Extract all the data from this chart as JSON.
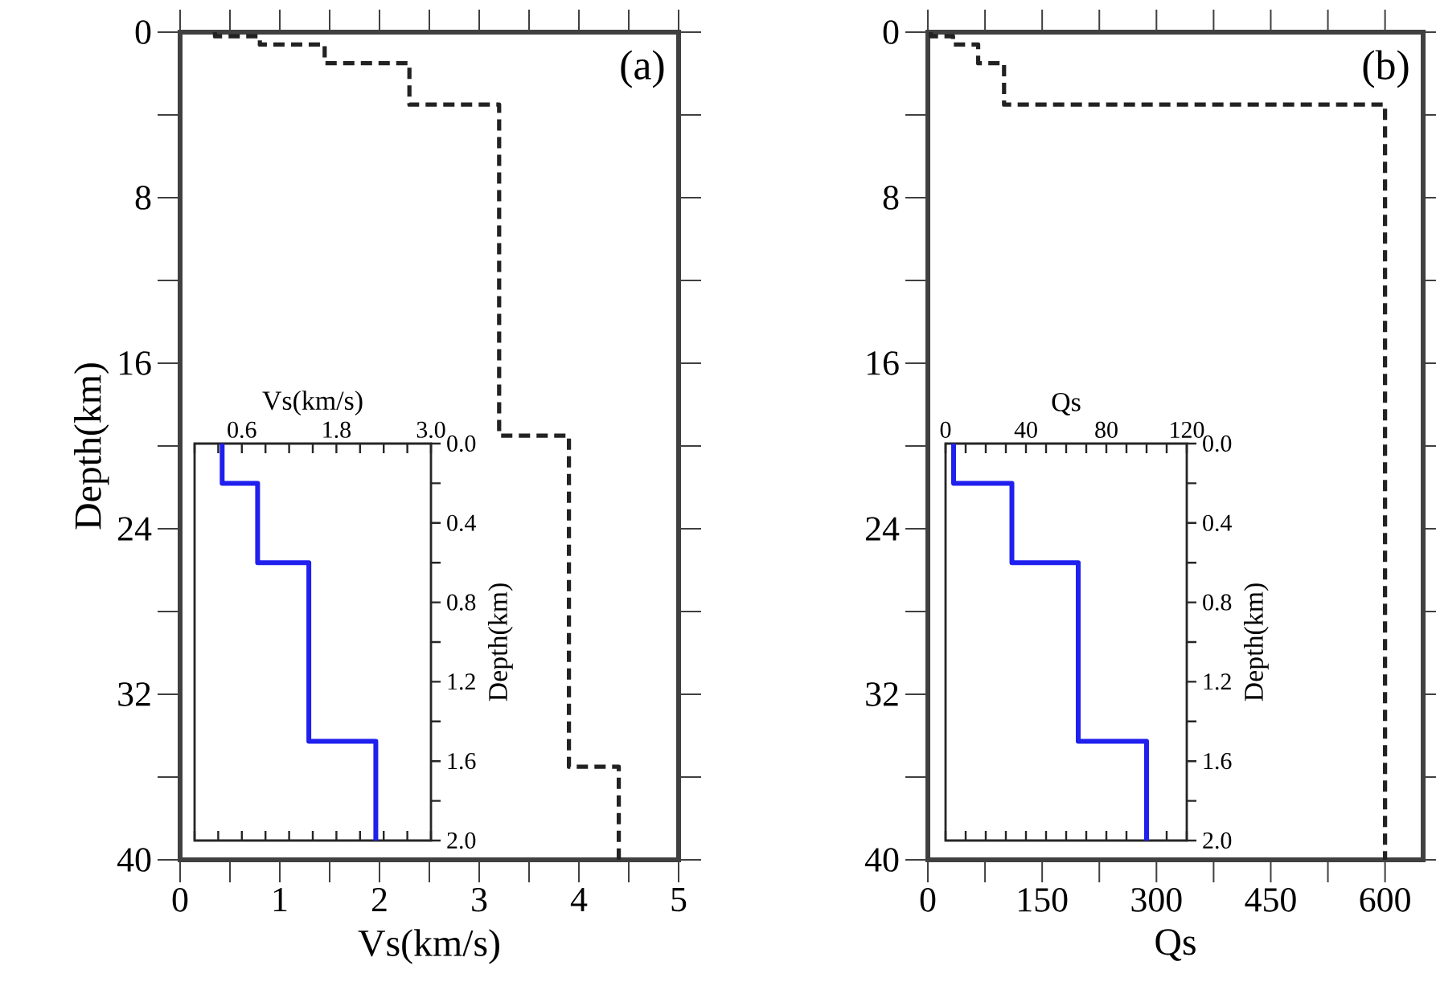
{
  "chart_data": [
    {
      "type": "line",
      "xlabel": "Vs(km/s)",
      "ylabel": "Depth(km)",
      "annotations": [
        "(a)"
      ],
      "xlim": [
        0,
        5
      ],
      "ylim": [
        40,
        0
      ],
      "xticks": [
        0,
        {
          "value": 0.5,
          "label": null
        },
        1,
        {
          "value": 1.5,
          "label": null
        },
        2,
        {
          "value": 2.5,
          "label": null
        },
        3,
        {
          "value": 3.5,
          "label": null
        },
        4,
        {
          "value": 4.5,
          "label": null
        },
        5
      ],
      "yticks": [
        0,
        {
          "value": 4,
          "label": null
        },
        8,
        {
          "value": 12,
          "label": null
        },
        16,
        {
          "value": 20,
          "label": null
        },
        24,
        {
          "value": 28,
          "label": null
        },
        32,
        {
          "value": 36,
          "label": null
        },
        40
      ],
      "line_style": "dashed",
      "series": [
        {
          "color": "#222222",
          "x": [
            0.35,
            0.35,
            0.8,
            0.8,
            1.45,
            1.45,
            2.3,
            2.3,
            3.2,
            3.2,
            3.9,
            3.9,
            4.4,
            4.4
          ],
          "values": [
            0,
            0.2,
            0.2,
            0.6,
            0.6,
            1.5,
            1.5,
            3.5,
            3.5,
            19.5,
            19.5,
            35.5,
            35.5,
            40
          ]
        }
      ]
    },
    {
      "type": "line",
      "xlabel": "Vs(km/s)",
      "ylabel": "Depth(km)",
      "xlim": [
        0,
        3.0
      ],
      "ylim": [
        2.0,
        0
      ],
      "xticks": [
        {
          "value": 0,
          "label": null
        },
        {
          "value": 0.3,
          "label": null
        },
        0.6,
        {
          "value": 0.9,
          "label": null
        },
        {
          "value": 1.2,
          "label": null
        },
        {
          "value": 1.5,
          "label": null
        },
        1.8,
        {
          "value": 2.1,
          "label": null
        },
        {
          "value": 2.4,
          "label": null
        },
        {
          "value": 2.7,
          "label": null
        },
        {
          "value": 3,
          "label": "3.0"
        }
      ],
      "yticks": [
        {
          "value": 0,
          "label": "0.0"
        },
        {
          "value": 0.2,
          "label": null
        },
        0.4,
        {
          "value": 0.6,
          "label": null
        },
        0.8,
        {
          "value": 1.0,
          "label": null
        },
        1.2,
        {
          "value": 1.4,
          "label": null
        },
        1.6,
        {
          "value": 1.8,
          "label": null
        },
        {
          "value": 2,
          "label": "2.0"
        }
      ],
      "line_style": "solid",
      "series": [
        {
          "color": "#2020ee",
          "x": [
            0.35,
            0.35,
            0.8,
            0.8,
            1.45,
            1.45,
            2.3,
            2.3
          ],
          "values": [
            0,
            0.2,
            0.2,
            0.6,
            0.6,
            1.5,
            1.5,
            2.0
          ]
        }
      ]
    },
    {
      "type": "line",
      "xlabel": "Qs",
      "annotations": [
        "(b)"
      ],
      "xlim": [
        0,
        650
      ],
      "ylim": [
        40,
        0
      ],
      "xticks": [
        0,
        {
          "value": 75,
          "label": null
        },
        150,
        {
          "value": 225,
          "label": null
        },
        300,
        {
          "value": 375,
          "label": null
        },
        450,
        {
          "value": 525,
          "label": null
        },
        600
      ],
      "yticks": [
        0,
        {
          "value": 4,
          "label": null
        },
        8,
        {
          "value": 12,
          "label": null
        },
        16,
        {
          "value": 20,
          "label": null
        },
        24,
        {
          "value": 28,
          "label": null
        },
        32,
        {
          "value": 36,
          "label": null
        },
        40
      ],
      "line_style": "dashed",
      "series": [
        {
          "color": "#222222",
          "x": [
            4,
            4,
            33,
            33,
            66,
            66,
            100,
            100,
            600,
            600
          ],
          "values": [
            0,
            0.2,
            0.2,
            0.6,
            0.6,
            1.5,
            1.5,
            3.5,
            3.5,
            40
          ]
        }
      ]
    },
    {
      "type": "line",
      "xlabel": "Qs",
      "ylabel": "Depth(km)",
      "xlim": [
        0,
        120
      ],
      "ylim": [
        2.0,
        0
      ],
      "xticks": [
        0,
        {
          "value": 10,
          "label": null
        },
        {
          "value": 20,
          "label": null
        },
        {
          "value": 30,
          "label": null
        },
        40,
        {
          "value": 50,
          "label": null
        },
        {
          "value": 60,
          "label": null
        },
        {
          "value": 70,
          "label": null
        },
        80,
        {
          "value": 90,
          "label": null
        },
        {
          "value": 100,
          "label": null
        },
        {
          "value": 110,
          "label": null
        },
        120
      ],
      "yticks": [
        {
          "value": 0,
          "label": "0.0"
        },
        {
          "value": 0.2,
          "label": null
        },
        0.4,
        {
          "value": 0.6,
          "label": null
        },
        0.8,
        {
          "value": 1.0,
          "label": null
        },
        1.2,
        {
          "value": 1.4,
          "label": null
        },
        1.6,
        {
          "value": 1.8,
          "label": null
        },
        {
          "value": 2,
          "label": "2.0"
        }
      ],
      "line_style": "solid",
      "series": [
        {
          "color": "#2020ee",
          "x": [
            4,
            4,
            33,
            33,
            66,
            66,
            100,
            100
          ],
          "values": [
            0,
            0.2,
            0.2,
            0.6,
            0.6,
            1.5,
            1.5,
            2.0
          ]
        }
      ]
    }
  ]
}
